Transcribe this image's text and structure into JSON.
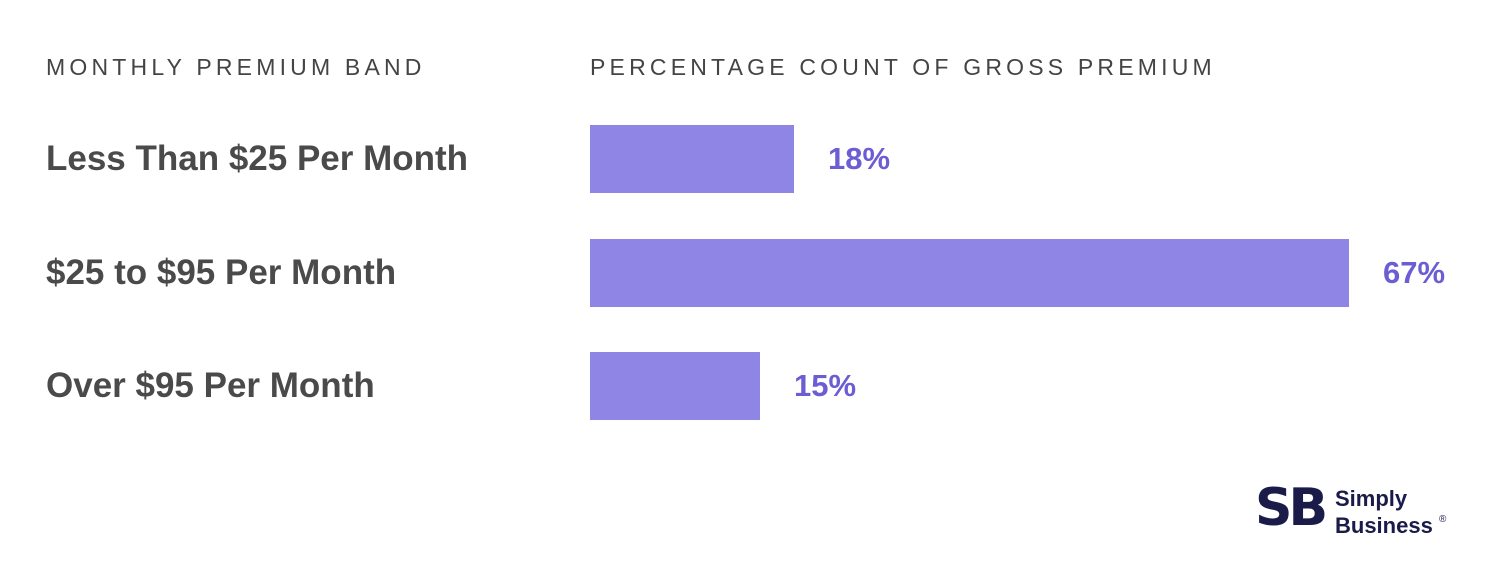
{
  "headers": {
    "band": "MONTHLY PREMIUM BAND",
    "percentage": "PERCENTAGE COUNT OF GROSS PREMIUM"
  },
  "colors": {
    "bar": "#8f85e4",
    "value_label": "#6c5dd3",
    "text": "#4a4a4a",
    "brand": "#1b1b4a"
  },
  "brand": {
    "mark": "SB",
    "name_line1": "Simply",
    "name_line2": "Business",
    "registered": "®"
  },
  "chart_data": {
    "type": "bar",
    "orientation": "horizontal",
    "categories": [
      "Less Than $25 Per Month",
      "$25 to $95 Per Month",
      "Over $95 Per Month"
    ],
    "values": [
      18,
      67,
      15
    ],
    "value_labels": [
      "18%",
      "67%",
      "15%"
    ],
    "xlim": [
      0,
      67
    ],
    "grid": false
  }
}
